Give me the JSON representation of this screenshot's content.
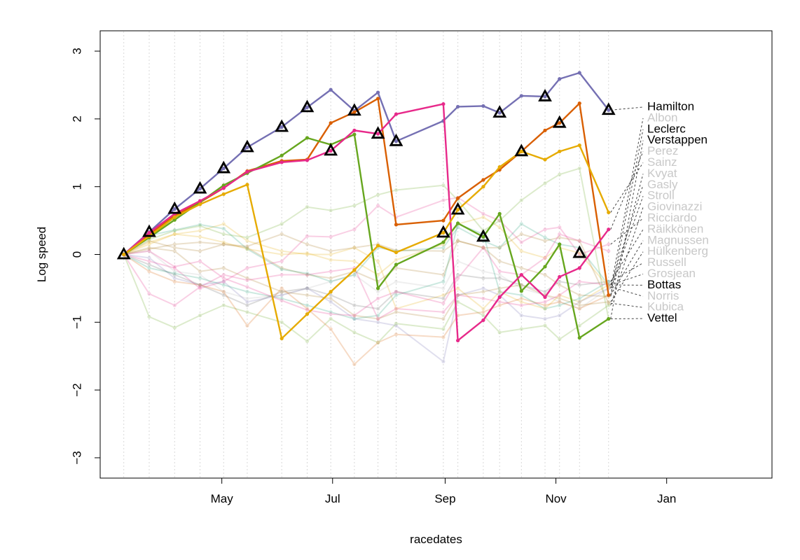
{
  "chart_data": {
    "type": "line",
    "title": "",
    "xlabel": "racedates",
    "ylabel": "Log speed",
    "ylim": [
      -3.3,
      3.3
    ],
    "xlim": [
      "2020-02-24",
      "2021-02-28"
    ],
    "x_ticks": [
      {
        "date": "2020-05-01",
        "label": "May"
      },
      {
        "date": "2020-07-01",
        "label": "Jul"
      },
      {
        "date": "2020-09-01",
        "label": "Sep"
      },
      {
        "date": "2020-11-01",
        "label": "Nov"
      },
      {
        "date": "2021-01-01",
        "label": "Jan"
      }
    ],
    "y_ticks": [
      -3,
      -2,
      -1,
      0,
      1,
      2,
      3
    ],
    "y_tick_labels": [
      "−3",
      "−2",
      "−1",
      "0",
      "1",
      "2",
      "3"
    ],
    "racedates": [
      "2020-03-08",
      "2020-03-22",
      "2020-04-05",
      "2020-04-19",
      "2020-05-02",
      "2020-05-15",
      "2020-06-03",
      "2020-06-17",
      "2020-06-30",
      "2020-07-13",
      "2020-07-26",
      "2020-08-05",
      "2020-08-31",
      "2020-09-08",
      "2020-09-22",
      "2020-10-01",
      "2020-10-13",
      "2020-10-26",
      "2020-11-03",
      "2020-11-14",
      "2020-11-30"
    ],
    "series": [
      {
        "name": "Hamilton",
        "color": "#7570b3",
        "highlight": true,
        "values": [
          0,
          0.33,
          0.67,
          0.97,
          1.27,
          1.58,
          1.88,
          2.17,
          2.43,
          2.12,
          2.39,
          1.67,
          1.97,
          2.18,
          2.19,
          2.09,
          2.34,
          2.33,
          2.59,
          2.68,
          2.13
        ]
      },
      {
        "name": "Albon",
        "color": "#bbbbbb",
        "highlight": false,
        "values": [
          0,
          0.05,
          -0.25,
          -0.3,
          -0.55,
          -0.65,
          -0.6,
          -0.5,
          -0.4,
          -0.3,
          -0.55,
          -0.4,
          -0.5,
          -0.1,
          -0.25,
          -0.3,
          -0.5,
          -0.6,
          -0.7,
          -0.8,
          -0.5
        ]
      },
      {
        "name": "Leclerc",
        "color": "#d95f02",
        "highlight": true,
        "values": [
          0,
          0.3,
          0.57,
          0.77,
          0.98,
          1.23,
          1.38,
          1.4,
          1.94,
          2.1,
          2.3,
          0.44,
          0.5,
          0.83,
          1.1,
          1.25,
          1.52,
          1.83,
          1.94,
          2.23,
          -0.6
        ]
      },
      {
        "name": "Verstappen",
        "color": "#66a61e",
        "highlight": true,
        "values": [
          0,
          0.25,
          0.51,
          0.77,
          1.02,
          1.2,
          1.46,
          1.72,
          1.62,
          1.77,
          -0.5,
          -0.15,
          0.18,
          0.46,
          0.26,
          0.6,
          -0.54,
          -0.18,
          0.15,
          -1.23,
          -0.95
        ]
      },
      {
        "name": "Perez",
        "color": "#e7298a",
        "highlight": true,
        "values": [
          0,
          0.32,
          0.6,
          0.79,
          0.98,
          1.22,
          1.36,
          1.39,
          1.53,
          1.83,
          1.78,
          2.07,
          2.22,
          -1.27,
          -0.97,
          -0.63,
          -0.3,
          -0.63,
          -0.33,
          -0.2,
          0.37
        ]
      },
      {
        "name": "Sainz",
        "color": "#e6ab02",
        "highlight": true,
        "values": [
          0,
          0.27,
          0.55,
          0.74,
          0.89,
          1.03,
          -1.24,
          -0.88,
          -0.55,
          -0.23,
          0.13,
          0.03,
          0.32,
          0.66,
          1.0,
          1.29,
          1.52,
          1.4,
          1.52,
          1.61,
          0.62
        ]
      },
      {
        "name": "Kvyat",
        "color": "#a6761d",
        "highlight": false,
        "values": [
          0,
          0.2,
          0.1,
          0.05,
          0.15,
          0.1,
          -0.2,
          -0.3,
          -0.35,
          -0.25,
          -0.4,
          -0.2,
          -0.3,
          0.2,
          0.1,
          -0.1,
          -0.2,
          -0.3,
          -0.45,
          -0.6,
          -0.62
        ]
      },
      {
        "name": "Gasly",
        "color": "#e6ab02",
        "highlight": false,
        "values": [
          0,
          0.15,
          0.3,
          0.35,
          0.45,
          0.2,
          0.05,
          0.0,
          0.0,
          0.1,
          -0.1,
          -0.8,
          -0.6,
          -0.5,
          -0.8,
          -0.55,
          -0.7,
          -0.8,
          -0.6,
          -0.7,
          -0.45
        ]
      },
      {
        "name": "Stroll",
        "color": "#7570b3",
        "highlight": false,
        "values": [
          0,
          -0.05,
          -0.35,
          -0.45,
          -0.4,
          -0.7,
          -0.6,
          -0.5,
          -0.7,
          -0.95,
          -1.0,
          -1.05,
          -1.58,
          -0.6,
          -0.5,
          -0.6,
          -0.9,
          -0.95,
          -0.9,
          -0.7,
          -0.5
        ]
      },
      {
        "name": "Giovinazzi",
        "color": "#66a61e",
        "highlight": false,
        "values": [
          0,
          -0.92,
          -1.08,
          -0.9,
          -0.75,
          -0.85,
          -1.0,
          -1.28,
          -0.95,
          -1.15,
          -1.3,
          -1.02,
          -1.1,
          -0.7,
          -0.9,
          -1.15,
          -1.1,
          -1.05,
          -1.25,
          -1.05,
          -0.75
        ]
      },
      {
        "name": "Ricciardo",
        "color": "#e7298a",
        "highlight": false,
        "values": [
          0,
          -0.1,
          -0.2,
          -0.5,
          -0.4,
          -0.2,
          -0.1,
          0.27,
          0.26,
          0.37,
          0.72,
          0.55,
          0.8,
          0.84,
          0.6,
          0.5,
          0.18,
          0.37,
          0.4,
          0.0,
          0.15
        ]
      },
      {
        "name": "Räikkönen",
        "color": "#666666",
        "highlight": false,
        "values": [
          0,
          -0.15,
          -0.3,
          -0.45,
          -0.6,
          -0.75,
          -0.55,
          -0.5,
          -0.6,
          -0.75,
          -0.8,
          -0.55,
          -0.65,
          -0.3,
          -0.35,
          -0.35,
          -0.45,
          -0.55,
          -0.4,
          -0.45,
          -0.4
        ]
      },
      {
        "name": "Magnussen",
        "color": "#d95f02",
        "highlight": false,
        "values": [
          0,
          -0.25,
          -0.4,
          -0.45,
          -0.55,
          -1.05,
          -0.5,
          -0.8,
          -1.1,
          -1.62,
          -1.3,
          -1.18,
          -1.22,
          -0.9,
          -0.85,
          -0.75,
          -0.65,
          -0.75,
          -0.7,
          -0.8,
          -0.6
        ]
      },
      {
        "name": "Hülkenberg",
        "color": "#a6761d",
        "highlight": false,
        "values": [
          0,
          0.1,
          0.05,
          -0.25,
          -0.2,
          -0.35,
          -0.55,
          -0.6,
          -0.65,
          -0.9,
          -0.95,
          -0.85,
          -0.95,
          -0.6,
          -0.55,
          -0.5,
          -0.45,
          -0.6,
          -0.65,
          -0.75,
          -0.7
        ]
      },
      {
        "name": "Russell",
        "color": "#1b9e77",
        "highlight": false,
        "values": [
          0,
          -0.2,
          -0.28,
          -0.35,
          -0.45,
          -0.55,
          -0.65,
          -0.75,
          -0.85,
          -0.95,
          -0.9,
          -0.6,
          -0.4,
          0.45,
          0.3,
          -0.55,
          -0.6,
          -0.8,
          -0.75,
          -0.65,
          -0.4
        ]
      },
      {
        "name": "Grosjean",
        "color": "#e7298a",
        "highlight": false,
        "values": [
          0,
          -0.58,
          -0.75,
          -0.48,
          -0.3,
          -0.38,
          -0.3,
          -0.3,
          -0.25,
          -0.2,
          -0.95,
          -0.8,
          -0.85,
          -0.6,
          -0.65,
          -0.7,
          -0.75,
          -0.7,
          -0.6,
          -0.4,
          -0.45
        ]
      },
      {
        "name": "Bottas",
        "color": "#1b9e77",
        "highlight": false,
        "values": [
          0,
          0.28,
          0.36,
          0.44,
          0.38,
          0.08,
          -0.22,
          -0.28,
          -0.4,
          -0.3,
          0.1,
          0.05,
          0.1,
          0.4,
          0.2,
          0.1,
          0.45,
          0.25,
          0.15,
          0.1,
          -0.45
        ]
      },
      {
        "name": "Norris",
        "color": "#e6ab02",
        "highlight": false,
        "values": [
          0,
          0.18,
          0.3,
          0.26,
          0.18,
          0.08,
          0.0,
          0.02,
          -0.08,
          -0.1,
          -0.3,
          -0.08,
          0.15,
          0.45,
          0.55,
          0.4,
          0.05,
          -0.05,
          0.1,
          0.02,
          -0.48
        ]
      },
      {
        "name": "Kubica",
        "color": "#a6761d",
        "highlight": false,
        "values": [
          0,
          0.08,
          0.15,
          0.18,
          0.15,
          0.12,
          0.3,
          0.15,
          0.05,
          0.1,
          0.15,
          0.06,
          0.05,
          0.2,
          0.1,
          0.1,
          0.3,
          0.2,
          0.25,
          0.2,
          -0.72
        ]
      },
      {
        "name": "Vettel",
        "color": "#66a61e",
        "highlight": false,
        "values": [
          0,
          0.22,
          0.35,
          0.42,
          0.3,
          0.25,
          0.45,
          0.7,
          0.65,
          0.72,
          0.88,
          0.95,
          1.02,
          0.8,
          0.35,
          0.5,
          0.8,
          1.05,
          1.18,
          1.27,
          -0.95
        ]
      },
      {
        "name": "",
        "color": "#e7298a",
        "highlight": false,
        "values": [
          0,
          0.05,
          -0.18,
          -0.1,
          -0.35,
          -0.48,
          -0.68,
          -0.82,
          -0.88,
          -0.9,
          -0.65,
          -0.55,
          -0.72,
          -0.35,
          0.1,
          -0.25,
          -0.3,
          -0.05,
          0.3,
          0.2,
          0.05
        ]
      }
    ],
    "markers": [
      {
        "x": "2020-03-08",
        "y": 0
      },
      {
        "x": "2020-03-22",
        "y": 0.33
      },
      {
        "x": "2020-04-05",
        "y": 0.67
      },
      {
        "x": "2020-04-19",
        "y": 0.97
      },
      {
        "x": "2020-05-02",
        "y": 1.27
      },
      {
        "x": "2020-05-15",
        "y": 1.58
      },
      {
        "x": "2020-06-03",
        "y": 1.88
      },
      {
        "x": "2020-06-17",
        "y": 2.17
      },
      {
        "x": "2020-06-30",
        "y": 1.53
      },
      {
        "x": "2020-07-13",
        "y": 2.12
      },
      {
        "x": "2020-07-26",
        "y": 1.78
      },
      {
        "x": "2020-08-05",
        "y": 1.67
      },
      {
        "x": "2020-08-31",
        "y": 0.32
      },
      {
        "x": "2020-09-08",
        "y": 0.66
      },
      {
        "x": "2020-09-22",
        "y": 0.26
      },
      {
        "x": "2020-10-01",
        "y": 2.09
      },
      {
        "x": "2020-10-13",
        "y": 1.52
      },
      {
        "x": "2020-10-26",
        "y": 2.33
      },
      {
        "x": "2020-11-03",
        "y": 1.94
      },
      {
        "x": "2020-11-14",
        "y": 0.02
      },
      {
        "x": "2020-11-30",
        "y": 2.13
      }
    ],
    "end_labels": [
      {
        "name": "Hamilton",
        "highlight": true
      },
      {
        "name": "Albon",
        "highlight": false
      },
      {
        "name": "Leclerc",
        "highlight": true
      },
      {
        "name": "Verstappen",
        "highlight": true
      },
      {
        "name": "Perez",
        "highlight": false
      },
      {
        "name": "Sainz",
        "highlight": false
      },
      {
        "name": "Kvyat",
        "highlight": false
      },
      {
        "name": "Gasly",
        "highlight": false
      },
      {
        "name": "Stroll",
        "highlight": false
      },
      {
        "name": "Giovinazzi",
        "highlight": false
      },
      {
        "name": "Ricciardo",
        "highlight": false
      },
      {
        "name": "Räikkönen",
        "highlight": false
      },
      {
        "name": "Magnussen",
        "highlight": false
      },
      {
        "name": "Hülkenberg",
        "highlight": false
      },
      {
        "name": "Russell",
        "highlight": false
      },
      {
        "name": "Grosjean",
        "highlight": false
      },
      {
        "name": "Bottas",
        "highlight": true
      },
      {
        "name": "Norris",
        "highlight": false
      },
      {
        "name": "Kubica",
        "highlight": false
      },
      {
        "name": "Vettel",
        "highlight": true
      }
    ],
    "label_colors": {
      "highlight": "#000000",
      "muted": "#c8c8c8"
    },
    "grid": "vertical dotted at race dates",
    "legend": "none"
  }
}
